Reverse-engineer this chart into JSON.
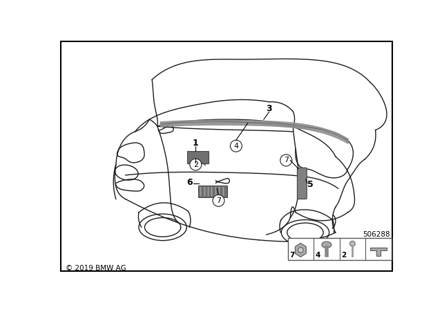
{
  "background_color": "#ffffff",
  "border_color": "#000000",
  "copyright_text": "© 2019 BMW AG",
  "part_number": "506288",
  "car_color": "#1a1a1a",
  "car_lw": 1.0,
  "part_fill": "#808080",
  "part_edge": "#555555"
}
